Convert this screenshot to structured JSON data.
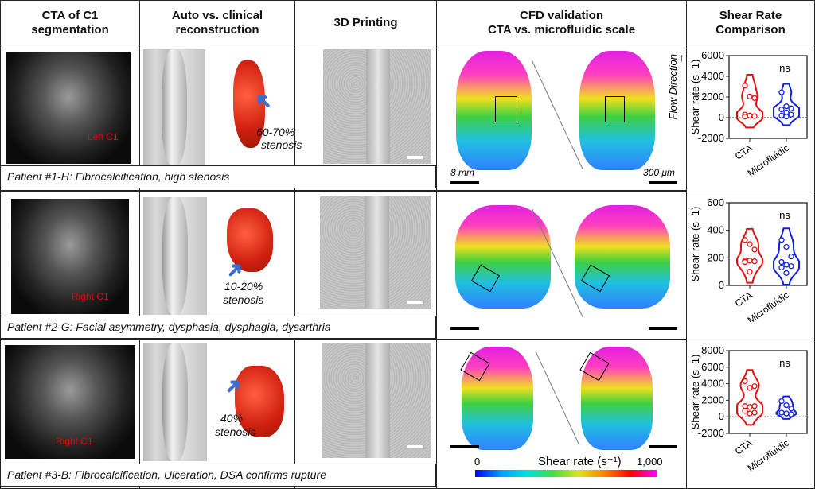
{
  "headers": [
    "CTA of C1 segmentation",
    "Auto vs. clinical reconstruction",
    "3D Printing",
    "CFD validation CTA vs. microfluidic scale",
    "Shear Rate Comparison"
  ],
  "header_lines": {
    "h0a": "CTA of C1",
    "h0b": "segmentation",
    "h1a": "Auto vs. clinical",
    "h1b": "reconstruction",
    "h2": "3D Printing",
    "h3a": "CFD validation",
    "h3b": "CTA vs. microfluidic scale",
    "h4a": "Shear Rate",
    "h4b": "Comparison"
  },
  "rows": [
    {
      "caption": "Patient #1-H: Fibrocalcification, high stenosis",
      "ct_label": "Left C1",
      "stenosis_a": "60-70%",
      "stenosis_b": "stenosis"
    },
    {
      "caption": "Patient #2-G: Facial asymmetry, dysphasia, dysphagia, dysarthria",
      "ct_label": "Right C1",
      "stenosis_a": "10-20%",
      "stenosis_b": "stenosis"
    },
    {
      "caption": "Patient #3-B: Fibrocalcification, Ulceration, DSA confirms rupture",
      "ct_label": "Right C1",
      "stenosis_a": "40%",
      "stenosis_b": "stenosis"
    }
  ],
  "cfd": {
    "scale_left": "8 mm",
    "scale_right": "300 μm",
    "flow_direction": "Flow Direction",
    "colorbar_min": "0",
    "colorbar_max": "1,000",
    "colorbar_label": "Shear rate (s⁻¹)"
  },
  "chart_data": [
    {
      "type": "violin",
      "ylabel": "Shear rate (s -1)",
      "ylim": [
        -2000,
        6000
      ],
      "yticks": [
        -2000,
        0,
        2000,
        4000,
        6000
      ],
      "zero_line": true,
      "categories": [
        "CTA",
        "Microfluidic"
      ],
      "annotation": "ns",
      "series": [
        {
          "color": "#e01010",
          "values": [
            3100,
            2050,
            1900,
            300,
            200,
            150,
            100,
            200
          ]
        },
        {
          "color": "#1020e0",
          "values": [
            2450,
            1100,
            900,
            800,
            500,
            300,
            200,
            100
          ]
        }
      ]
    },
    {
      "type": "violin",
      "ylabel": "Shear rate (s -1)",
      "ylim": [
        0,
        600
      ],
      "yticks": [
        0,
        200,
        400,
        600
      ],
      "zero_line": false,
      "categories": [
        "CTA",
        "Microfluidic"
      ],
      "annotation": "ns",
      "series": [
        {
          "color": "#e01010",
          "values": [
            330,
            300,
            260,
            180,
            180,
            175,
            170,
            100
          ]
        },
        {
          "color": "#1020e0",
          "values": [
            330,
            280,
            210,
            170,
            150,
            140,
            130,
            90
          ]
        }
      ]
    },
    {
      "type": "violin",
      "ylabel": "Shear rate (s -1)",
      "ylim": [
        -2000,
        8000
      ],
      "yticks": [
        -2000,
        0,
        2000,
        4000,
        6000,
        8000
      ],
      "zero_line": true,
      "categories": [
        "CTA",
        "Microfluidic"
      ],
      "annotation": "ns",
      "series": [
        {
          "color": "#e01010",
          "values": [
            4300,
            3500,
            3700,
            1300,
            1200,
            1300,
            700,
            400,
            500
          ]
        },
        {
          "color": "#1020e0",
          "values": [
            1900,
            1400,
            1000,
            500,
            400,
            300
          ]
        }
      ]
    }
  ]
}
